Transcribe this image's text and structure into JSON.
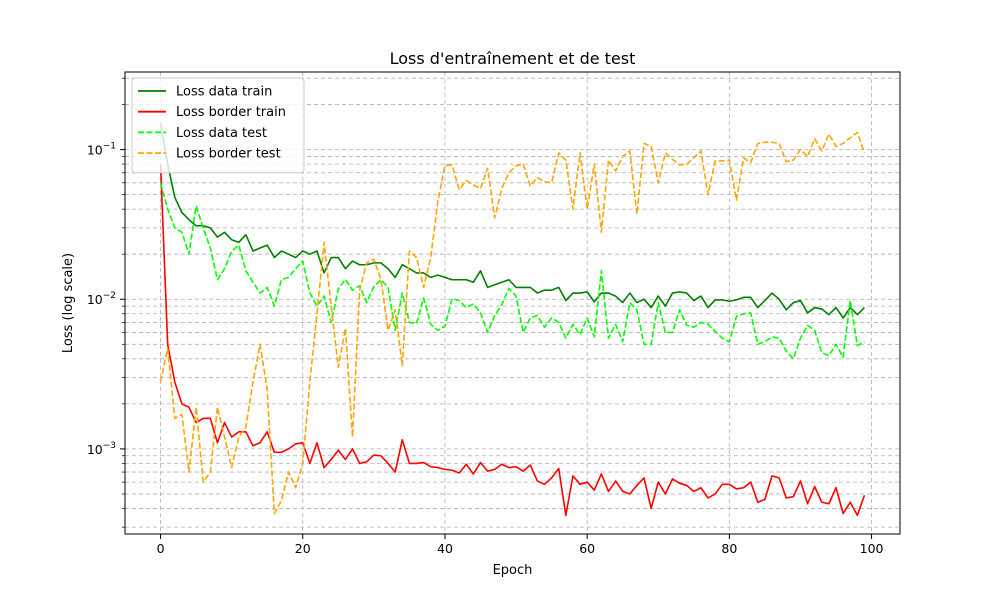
{
  "chart_data": {
    "type": "line",
    "title": "Loss d'entraînement et de test",
    "xlabel": "Epoch",
    "ylabel": "Loss (log scale)",
    "xlim": [
      -5,
      104
    ],
    "ylim": [
      0.00027,
      0.33
    ],
    "yscale": "log",
    "grid": true,
    "legend_position": "upper-left",
    "x_ticks": [
      {
        "value": 0,
        "label": "0"
      },
      {
        "value": 20,
        "label": "20"
      },
      {
        "value": 40,
        "label": "40"
      },
      {
        "value": 60,
        "label": "60"
      },
      {
        "value": 80,
        "label": "80"
      },
      {
        "value": 100,
        "label": "100"
      }
    ],
    "y_ticks": [
      {
        "value": 0.001,
        "base": "10",
        "exp": "−3"
      },
      {
        "value": 0.01,
        "base": "10",
        "exp": "−2"
      },
      {
        "value": 0.1,
        "base": "10",
        "exp": "−1"
      }
    ],
    "series": [
      {
        "name": "Loss data train",
        "color": "#008000",
        "dash": "solid",
        "x_start": 0,
        "values": [
          0.15,
          0.08,
          0.048,
          0.038,
          0.034,
          0.031,
          0.031,
          0.03,
          0.026,
          0.028,
          0.025,
          0.024,
          0.027,
          0.021,
          0.022,
          0.023,
          0.019,
          0.021,
          0.02,
          0.019,
          0.021,
          0.02,
          0.021,
          0.015,
          0.019,
          0.019,
          0.016,
          0.018,
          0.017,
          0.017,
          0.0175,
          0.0175,
          0.016,
          0.014,
          0.017,
          0.016,
          0.015,
          0.015,
          0.014,
          0.0145,
          0.014,
          0.0135,
          0.0135,
          0.0135,
          0.013,
          0.0155,
          0.012,
          0.0125,
          0.013,
          0.0135,
          0.012,
          0.012,
          0.012,
          0.011,
          0.0115,
          0.0115,
          0.012,
          0.0098,
          0.011,
          0.011,
          0.0112,
          0.0096,
          0.011,
          0.011,
          0.0105,
          0.0095,
          0.011,
          0.0095,
          0.01,
          0.0088,
          0.0105,
          0.009,
          0.011,
          0.0112,
          0.011,
          0.0098,
          0.0105,
          0.0088,
          0.0099,
          0.0099,
          0.0097,
          0.0099,
          0.0103,
          0.0103,
          0.0088,
          0.0098,
          0.011,
          0.01,
          0.0085,
          0.0095,
          0.0098,
          0.0081,
          0.0088,
          0.0086,
          0.0079,
          0.0088,
          0.0075,
          0.0088,
          0.0079,
          0.0088
        ]
      },
      {
        "name": "Loss border train",
        "color": "#ff0000",
        "dash": "solid",
        "x_start": 0,
        "values": [
          0.08,
          0.005,
          0.0028,
          0.002,
          0.0019,
          0.0015,
          0.0016,
          0.0016,
          0.0011,
          0.0015,
          0.0012,
          0.0013,
          0.0013,
          0.00105,
          0.0011,
          0.0013,
          0.00095,
          0.00095,
          0.001,
          0.00108,
          0.0011,
          0.0008,
          0.0011,
          0.00075,
          0.00085,
          0.00098,
          0.00085,
          0.001,
          0.0008,
          0.00082,
          0.00091,
          0.0009,
          0.0008,
          0.0007,
          0.00115,
          0.0008,
          0.0008,
          0.00081,
          0.00076,
          0.00075,
          0.00073,
          0.00072,
          0.00069,
          0.00079,
          0.00068,
          0.00081,
          0.00071,
          0.00073,
          0.00079,
          0.00075,
          0.00076,
          0.00071,
          0.00078,
          0.00061,
          0.00058,
          0.00064,
          0.00074,
          0.00036,
          0.00066,
          0.00058,
          0.0006,
          0.00053,
          0.00068,
          0.00052,
          0.00061,
          0.00052,
          0.0005,
          0.00057,
          0.00064,
          0.0004,
          0.0006,
          0.0005,
          0.00063,
          0.00059,
          0.00057,
          0.00052,
          0.00055,
          0.00047,
          0.0005,
          0.00058,
          0.00058,
          0.00054,
          0.00055,
          0.0006,
          0.00044,
          0.00046,
          0.00066,
          0.00064,
          0.00047,
          0.00048,
          0.00061,
          0.00043,
          0.00056,
          0.00044,
          0.00043,
          0.00055,
          0.00037,
          0.00044,
          0.00036,
          0.00049
        ]
      },
      {
        "name": "Loss data test",
        "color": "#00ff00",
        "dash": "dashed",
        "x_start": 0,
        "values": [
          0.06,
          0.04,
          0.03,
          0.028,
          0.02,
          0.042,
          0.03,
          0.022,
          0.0135,
          0.016,
          0.021,
          0.023,
          0.0155,
          0.013,
          0.011,
          0.012,
          0.009,
          0.0135,
          0.014,
          0.016,
          0.018,
          0.011,
          0.009,
          0.0105,
          0.007,
          0.0117,
          0.0136,
          0.0115,
          0.0123,
          0.0095,
          0.0121,
          0.0135,
          0.012,
          0.0062,
          0.011,
          0.007,
          0.0069,
          0.0102,
          0.0068,
          0.0062,
          0.0066,
          0.0101,
          0.0098,
          0.0088,
          0.0093,
          0.0081,
          0.006,
          0.0078,
          0.0092,
          0.0118,
          0.0105,
          0.006,
          0.0075,
          0.0078,
          0.0065,
          0.0075,
          0.007,
          0.0055,
          0.0068,
          0.0058,
          0.0075,
          0.0056,
          0.0155,
          0.0055,
          0.0068,
          0.0052,
          0.0095,
          0.0085,
          0.005,
          0.005,
          0.0095,
          0.006,
          0.006,
          0.0085,
          0.0067,
          0.0065,
          0.007,
          0.0068,
          0.0061,
          0.0055,
          0.0052,
          0.0077,
          0.008,
          0.0081,
          0.005,
          0.0052,
          0.0056,
          0.0055,
          0.0045,
          0.004,
          0.0055,
          0.0067,
          0.0062,
          0.0044,
          0.0042,
          0.005,
          0.0041,
          0.0098,
          0.0049,
          0.0052
        ]
      },
      {
        "name": "Loss border test",
        "color": "#ffa500",
        "dash": "dashed",
        "x_start": 0,
        "values": [
          0.0028,
          0.0047,
          0.0016,
          0.0017,
          0.0007,
          0.0019,
          0.0006,
          0.0007,
          0.0019,
          0.0012,
          0.00075,
          0.0012,
          0.0014,
          0.0028,
          0.005,
          0.0025,
          0.00037,
          0.00045,
          0.0007,
          0.00055,
          0.0008,
          0.0028,
          0.008,
          0.024,
          0.009,
          0.0035,
          0.0064,
          0.0012,
          0.0115,
          0.0175,
          0.0185,
          0.0135,
          0.0062,
          0.0085,
          0.0036,
          0.021,
          0.019,
          0.012,
          0.019,
          0.045,
          0.078,
          0.079,
          0.054,
          0.062,
          0.058,
          0.055,
          0.075,
          0.035,
          0.055,
          0.07,
          0.078,
          0.08,
          0.057,
          0.065,
          0.061,
          0.06,
          0.095,
          0.085,
          0.04,
          0.095,
          0.04,
          0.08,
          0.028,
          0.085,
          0.072,
          0.09,
          0.098,
          0.037,
          0.11,
          0.105,
          0.06,
          0.095,
          0.086,
          0.079,
          0.08,
          0.088,
          0.098,
          0.05,
          0.084,
          0.084,
          0.085,
          0.046,
          0.088,
          0.082,
          0.11,
          0.112,
          0.112,
          0.11,
          0.083,
          0.085,
          0.1,
          0.09,
          0.118,
          0.098,
          0.127,
          0.105,
          0.11,
          0.12,
          0.13,
          0.095
        ]
      }
    ]
  }
}
